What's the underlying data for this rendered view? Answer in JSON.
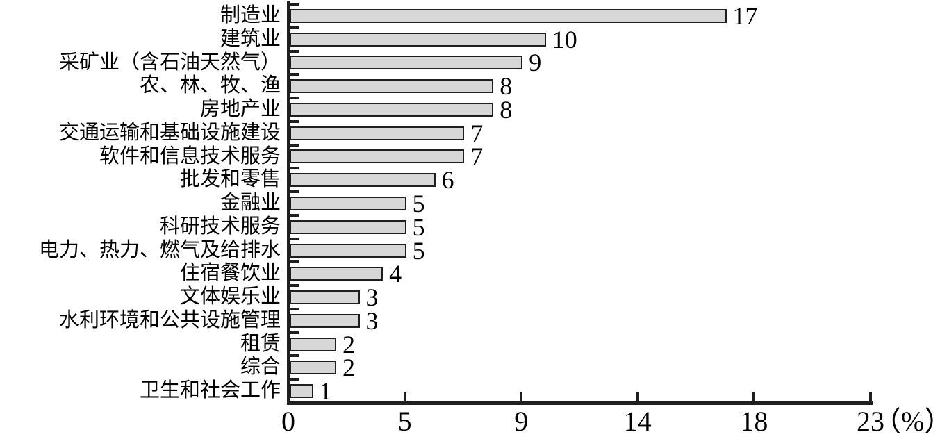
{
  "chart_data": {
    "type": "bar",
    "orientation": "horizontal",
    "title": "",
    "xlabel": "",
    "ylabel": "",
    "axis_unit_label": "（%）",
    "categories": [
      "制造业",
      "建筑业",
      "采矿业（含石油天然气）",
      "农、林、牧、渔",
      "房地产业",
      "交通运输和基础设施建设",
      "软件和信息技术服务",
      "批发和零售",
      "金融业",
      "科研技术服务",
      "电力、热力、燃气及给排水",
      "住宿餐饮业",
      "文体娱乐业",
      "水利环境和公共设施管理",
      "租赁",
      "综合",
      "卫生和社会工作"
    ],
    "values": [
      17,
      10,
      9,
      8,
      8,
      7,
      7,
      6,
      5,
      5,
      5,
      4,
      3,
      3,
      2,
      2,
      1
    ],
    "x_ticks": [
      0,
      5,
      9,
      14,
      18,
      23
    ],
    "x_tick_labels": [
      "0",
      "5",
      "9",
      "14",
      "18",
      "23"
    ],
    "x_scale": "equal-spacing-between-labeled-ticks",
    "xlim": [
      0,
      23
    ],
    "grid": false,
    "legend": "none",
    "bar_fill": "#d7d7d7",
    "bar_border": "#1f1f1f",
    "axis_color": "#1f1f1f",
    "text_color": "#000000"
  }
}
